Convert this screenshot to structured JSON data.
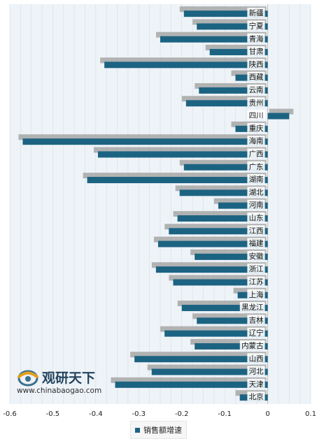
{
  "chart_data": {
    "type": "bar",
    "orientation": "horizontal",
    "categories": [
      "新疆",
      "宁夏",
      "青海",
      "甘肃",
      "陕西",
      "西藏",
      "云南",
      "贵州",
      "四川",
      "重庆",
      "海南",
      "广西",
      "广东",
      "湖南",
      "湖北",
      "河南",
      "山东",
      "江西",
      "福建",
      "安徽",
      "浙江",
      "江苏",
      "上海",
      "黑龙江",
      "吉林",
      "辽宁",
      "内蒙古",
      "山西",
      "河北",
      "天津",
      "北京"
    ],
    "series": [
      {
        "name": "销售额增速",
        "color": "#1c6382",
        "values": [
          -0.195,
          -0.165,
          -0.25,
          -0.135,
          -0.38,
          -0.075,
          -0.16,
          -0.19,
          0.05,
          -0.075,
          -0.57,
          -0.395,
          -0.195,
          -0.42,
          -0.205,
          -0.115,
          -0.21,
          -0.23,
          -0.255,
          -0.17,
          -0.26,
          -0.22,
          -0.07,
          -0.2,
          -0.165,
          -0.24,
          -0.17,
          -0.31,
          -0.27,
          -0.355,
          -0.065
        ]
      }
    ],
    "shadow_color": "#a6a6a6",
    "xlim": [
      -0.6,
      0.1
    ],
    "xticks": [
      "-0.6",
      "-0.5",
      "-0.4",
      "-0.3",
      "-0.2",
      "-0.1",
      "0",
      "0.1"
    ],
    "grid": true,
    "legend_position": "bottom"
  },
  "watermark": {
    "title": "观研天下",
    "url": "www.chinabaogao.com"
  }
}
